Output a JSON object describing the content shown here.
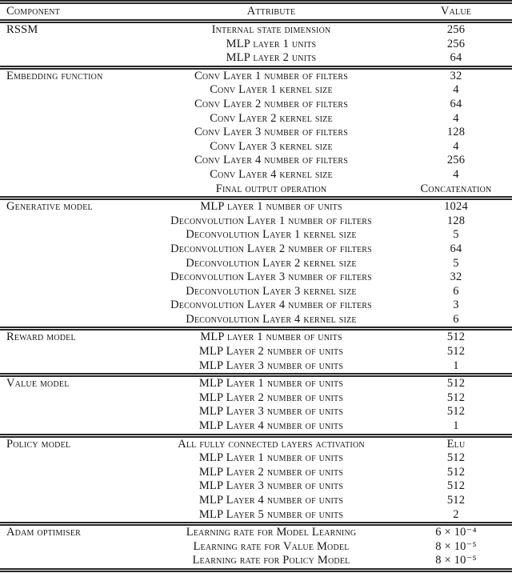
{
  "table": {
    "colors": {
      "text": "#161616",
      "rule": "#262626",
      "background": "#ffffff"
    },
    "headers": {
      "component": "Component",
      "attribute": "Attribute",
      "value": "Value"
    },
    "sections": [
      {
        "component": "RSSM",
        "rows": [
          {
            "attribute": "Internal state dimension",
            "value": "256"
          },
          {
            "attribute": "MLP layer 1 units",
            "value": "256"
          },
          {
            "attribute": "MLP layer 2 units",
            "value": "64"
          }
        ]
      },
      {
        "component": "Embedding function",
        "rows": [
          {
            "attribute": "Conv Layer 1 number of filters",
            "value": "32"
          },
          {
            "attribute": "Conv Layer 1 kernel size",
            "value": "4"
          },
          {
            "attribute": "Conv Layer 2 number of filters",
            "value": "64"
          },
          {
            "attribute": "Conv Layer 2 kernel size",
            "value": "4"
          },
          {
            "attribute": "Conv Layer 3 number of filters",
            "value": "128"
          },
          {
            "attribute": "Conv Layer 3 kernel size",
            "value": "4"
          },
          {
            "attribute": "Conv Layer 4 number of filters",
            "value": "256"
          },
          {
            "attribute": "Conv Layer 4 kernel size",
            "value": "4"
          },
          {
            "attribute": "Final output operation",
            "value": "Concatenation"
          }
        ]
      },
      {
        "component": "Generative model",
        "rows": [
          {
            "attribute": "MLP layer 1 number of units",
            "value": "1024"
          },
          {
            "attribute": "Deconvolution Layer 1 number of filters",
            "value": "128"
          },
          {
            "attribute": "Deconvolution Layer 1 kernel size",
            "value": "5"
          },
          {
            "attribute": "Deconvolution Layer 2 number of filters",
            "value": "64"
          },
          {
            "attribute": "Deconvolution Layer 2 kernel size",
            "value": "5"
          },
          {
            "attribute": "Deconvolution Layer 3 number of filters",
            "value": "32"
          },
          {
            "attribute": "Deconvolution Layer 3 kernel size",
            "value": "6"
          },
          {
            "attribute": "Deconvolution Layer 4 number of filters",
            "value": "3"
          },
          {
            "attribute": "Deconvolution Layer 4 kernel size",
            "value": "6"
          }
        ]
      },
      {
        "component": "Reward model",
        "rows": [
          {
            "attribute": "MLP layer 1 number of units",
            "value": "512"
          },
          {
            "attribute": "MLP Layer 2 number of units",
            "value": "512"
          },
          {
            "attribute": "MLP Layer 3 number of units",
            "value": "1"
          }
        ]
      },
      {
        "component": "Value model",
        "rows": [
          {
            "attribute": "MLP Layer 1 number of units",
            "value": "512"
          },
          {
            "attribute": "MLP Layer 2 number of units",
            "value": "512"
          },
          {
            "attribute": "MLP Layer 3 number of units",
            "value": "512"
          },
          {
            "attribute": "MLP Layer 4 number of units",
            "value": "1"
          }
        ]
      },
      {
        "component": "Policy model",
        "rows": [
          {
            "attribute": "All fully connected layers activation",
            "value": "Elu"
          },
          {
            "attribute": "MLP Layer 1 number of units",
            "value": "512"
          },
          {
            "attribute": "MLP Layer 2 number of units",
            "value": "512"
          },
          {
            "attribute": "MLP Layer 3 number of units",
            "value": "512"
          },
          {
            "attribute": "MLP Layer 4 number of units",
            "value": "512"
          },
          {
            "attribute": "MLP Layer 5 number of units",
            "value": "2"
          }
        ]
      },
      {
        "component": "Adam optimiser",
        "rows": [
          {
            "attribute": "Learning rate for Model Learning",
            "value": "6 × 10⁻⁴"
          },
          {
            "attribute": "Learning rate for Value Model",
            "value": "8 × 10⁻⁵"
          },
          {
            "attribute": "Learning rate for Policy Model",
            "value": "8 × 10⁻⁵"
          }
        ]
      }
    ]
  }
}
